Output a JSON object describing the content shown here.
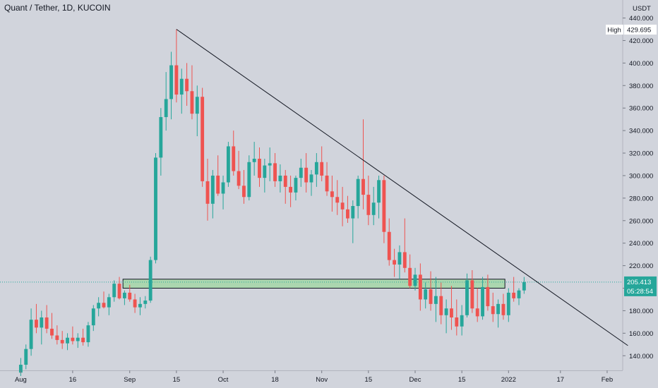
{
  "chart_title": "Quant / Tether, 1D, KUCOIN",
  "chart_data": {
    "type": "candlestick",
    "title": "Quant / Tether, 1D, KUCOIN",
    "currency_label": "USDT",
    "y_ticks": [
      140,
      160,
      180,
      200,
      220,
      240,
      260,
      280,
      300,
      320,
      340,
      360,
      380,
      400,
      420,
      440
    ],
    "y_tick_labels": [
      "140.000",
      "160.000",
      "180.000",
      "200.000",
      "220.000",
      "240.000",
      "260.000",
      "280.000",
      "300.000",
      "320.000",
      "340.000",
      "360.000",
      "380.000",
      "400.000",
      "420.000",
      "440.000"
    ],
    "ylim": [
      127,
      456
    ],
    "x_ticks": [
      "Aug",
      "16",
      "Sep",
      "15",
      "Oct",
      "18",
      "Nov",
      "15",
      "Dec",
      "15",
      "2022",
      "17",
      "Feb"
    ],
    "x_tick_index": [
      0,
      10,
      21,
      30,
      39,
      49,
      58,
      67,
      76,
      85,
      94,
      104,
      113
    ],
    "xlim": [
      -4,
      116
    ],
    "high_label": "High",
    "high_value": "429.695",
    "last_price_label": "205.413",
    "countdown_label": "05:28:54",
    "last_price": 205.4,
    "candles": [
      [
        125,
        138,
        122,
        132
      ],
      [
        132,
        150,
        128,
        146
      ],
      [
        146,
        182,
        140,
        172
      ],
      [
        172,
        186,
        160,
        165
      ],
      [
        165,
        180,
        150,
        174
      ],
      [
        174,
        185,
        160,
        164
      ],
      [
        164,
        178,
        155,
        158
      ],
      [
        158,
        167,
        150,
        154
      ],
      [
        154,
        162,
        146,
        151
      ],
      [
        151,
        160,
        145,
        156
      ],
      [
        156,
        166,
        150,
        153
      ],
      [
        153,
        160,
        147,
        156
      ],
      [
        156,
        164,
        149,
        152
      ],
      [
        152,
        170,
        148,
        167
      ],
      [
        167,
        185,
        162,
        182
      ],
      [
        182,
        192,
        175,
        187
      ],
      [
        187,
        197,
        182,
        183
      ],
      [
        183,
        195,
        176,
        192
      ],
      [
        192,
        207,
        188,
        204
      ],
      [
        204,
        210,
        190,
        191
      ],
      [
        191,
        198,
        185,
        196
      ],
      [
        196,
        203,
        188,
        190
      ],
      [
        190,
        195,
        178,
        183
      ],
      [
        183,
        192,
        176,
        186
      ],
      [
        186,
        193,
        182,
        189
      ],
      [
        189,
        228,
        187,
        225
      ],
      [
        225,
        320,
        222,
        316
      ],
      [
        316,
        360,
        300,
        352
      ],
      [
        352,
        392,
        340,
        368
      ],
      [
        368,
        410,
        350,
        398
      ],
      [
        398,
        430,
        365,
        372
      ],
      [
        372,
        395,
        355,
        386
      ],
      [
        386,
        400,
        362,
        375
      ],
      [
        375,
        398,
        350,
        355
      ],
      [
        355,
        380,
        335,
        370
      ],
      [
        370,
        378,
        290,
        295
      ],
      [
        295,
        315,
        260,
        275
      ],
      [
        275,
        305,
        262,
        300
      ],
      [
        300,
        318,
        282,
        284
      ],
      [
        284,
        300,
        270,
        294
      ],
      [
        294,
        330,
        290,
        326
      ],
      [
        326,
        340,
        300,
        304
      ],
      [
        304,
        322,
        288,
        291
      ],
      [
        291,
        305,
        275,
        281
      ],
      [
        281,
        318,
        278,
        312
      ],
      [
        312,
        330,
        300,
        315
      ],
      [
        315,
        325,
        290,
        298
      ],
      [
        298,
        315,
        285,
        309
      ],
      [
        309,
        325,
        295,
        311
      ],
      [
        311,
        320,
        290,
        295
      ],
      [
        295,
        310,
        285,
        300
      ],
      [
        300,
        305,
        275,
        290
      ],
      [
        290,
        300,
        272,
        285
      ],
      [
        285,
        300,
        278,
        298
      ],
      [
        298,
        315,
        290,
        307
      ],
      [
        307,
        320,
        285,
        294
      ],
      [
        294,
        305,
        282,
        301
      ],
      [
        301,
        320,
        290,
        312
      ],
      [
        312,
        326,
        295,
        300
      ],
      [
        300,
        312,
        282,
        286
      ],
      [
        286,
        300,
        268,
        281
      ],
      [
        281,
        296,
        265,
        276
      ],
      [
        276,
        290,
        255,
        270
      ],
      [
        270,
        282,
        258,
        262
      ],
      [
        262,
        278,
        240,
        273
      ],
      [
        273,
        300,
        262,
        297
      ],
      [
        297,
        350,
        270,
        283
      ],
      [
        283,
        300,
        256,
        265
      ],
      [
        265,
        290,
        256,
        276
      ],
      [
        276,
        300,
        262,
        296
      ],
      [
        296,
        300,
        240,
        250
      ],
      [
        250,
        262,
        220,
        225
      ],
      [
        225,
        235,
        210,
        221
      ],
      [
        221,
        238,
        208,
        232
      ],
      [
        232,
        262,
        214,
        218
      ],
      [
        218,
        230,
        200,
        202
      ],
      [
        202,
        218,
        198,
        212
      ],
      [
        212,
        222,
        180,
        190
      ],
      [
        190,
        205,
        182,
        199
      ],
      [
        199,
        215,
        180,
        186
      ],
      [
        186,
        210,
        170,
        193
      ],
      [
        193,
        205,
        168,
        176
      ],
      [
        176,
        190,
        160,
        182
      ],
      [
        182,
        202,
        163,
        174
      ],
      [
        174,
        190,
        158,
        166
      ],
      [
        166,
        185,
        158,
        176
      ],
      [
        176,
        213,
        174,
        207
      ],
      [
        207,
        216,
        178,
        182
      ],
      [
        182,
        200,
        170,
        175
      ],
      [
        175,
        210,
        172,
        201
      ],
      [
        201,
        212,
        180,
        184
      ],
      [
        184,
        196,
        170,
        177
      ],
      [
        177,
        190,
        165,
        186
      ],
      [
        186,
        195,
        172,
        176
      ],
      [
        176,
        200,
        170,
        196
      ],
      [
        196,
        210,
        188,
        191
      ],
      [
        191,
        200,
        185,
        198
      ],
      [
        198,
        210,
        195,
        205.4
      ]
    ],
    "trendline": {
      "from": [
        30,
        430
      ],
      "to": [
        117,
        149
      ]
    },
    "support_zone": [
      200,
      208
    ]
  }
}
